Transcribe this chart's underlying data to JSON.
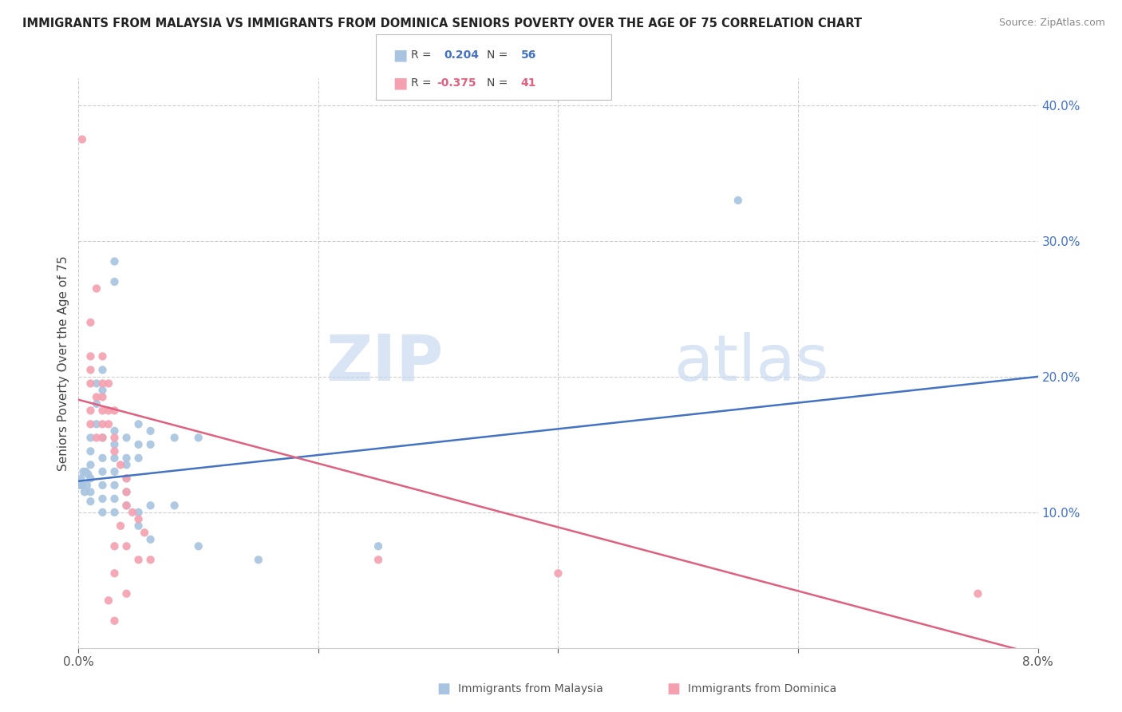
{
  "title": "IMMIGRANTS FROM MALAYSIA VS IMMIGRANTS FROM DOMINICA SENIORS POVERTY OVER THE AGE OF 75 CORRELATION CHART",
  "source": "Source: ZipAtlas.com",
  "ylabel": "Seniors Poverty Over the Age of 75",
  "x_min": 0.0,
  "x_max": 0.08,
  "y_min": 0.0,
  "y_max": 0.42,
  "y_ticks": [
    0.1,
    0.2,
    0.3,
    0.4
  ],
  "y_tick_labels": [
    "10.0%",
    "20.0%",
    "30.0%",
    "40.0%"
  ],
  "x_ticks": [
    0.0,
    0.02,
    0.04,
    0.06,
    0.08
  ],
  "x_tick_labels": [
    "0.0%",
    "",
    "",
    "",
    "8.0%"
  ],
  "malaysia_R": 0.204,
  "malaysia_N": 56,
  "dominica_R": -0.375,
  "dominica_N": 41,
  "malaysia_color": "#a8c4e0",
  "dominica_color": "#f4a0b0",
  "malaysia_line_color": "#4472c4",
  "dominica_line_color": "#e06080",
  "watermark_zip": "ZIP",
  "watermark_atlas": "atlas",
  "malaysia_scatter": [
    [
      0.0002,
      0.125
    ],
    [
      0.0003,
      0.12
    ],
    [
      0.0004,
      0.13
    ],
    [
      0.0005,
      0.115
    ],
    [
      0.0006,
      0.13
    ],
    [
      0.0007,
      0.12
    ],
    [
      0.0008,
      0.128
    ],
    [
      0.001,
      0.155
    ],
    [
      0.001,
      0.145
    ],
    [
      0.001,
      0.135
    ],
    [
      0.001,
      0.125
    ],
    [
      0.001,
      0.115
    ],
    [
      0.001,
      0.108
    ],
    [
      0.0015,
      0.195
    ],
    [
      0.0015,
      0.18
    ],
    [
      0.0015,
      0.165
    ],
    [
      0.002,
      0.205
    ],
    [
      0.002,
      0.19
    ],
    [
      0.002,
      0.155
    ],
    [
      0.002,
      0.14
    ],
    [
      0.002,
      0.13
    ],
    [
      0.002,
      0.12
    ],
    [
      0.002,
      0.11
    ],
    [
      0.002,
      0.1
    ],
    [
      0.003,
      0.285
    ],
    [
      0.003,
      0.27
    ],
    [
      0.003,
      0.16
    ],
    [
      0.003,
      0.15
    ],
    [
      0.003,
      0.14
    ],
    [
      0.003,
      0.13
    ],
    [
      0.003,
      0.12
    ],
    [
      0.003,
      0.11
    ],
    [
      0.003,
      0.1
    ],
    [
      0.004,
      0.155
    ],
    [
      0.004,
      0.14
    ],
    [
      0.004,
      0.135
    ],
    [
      0.004,
      0.125
    ],
    [
      0.004,
      0.115
    ],
    [
      0.004,
      0.105
    ],
    [
      0.005,
      0.165
    ],
    [
      0.005,
      0.15
    ],
    [
      0.005,
      0.14
    ],
    [
      0.005,
      0.1
    ],
    [
      0.005,
      0.09
    ],
    [
      0.006,
      0.16
    ],
    [
      0.006,
      0.15
    ],
    [
      0.006,
      0.105
    ],
    [
      0.006,
      0.08
    ],
    [
      0.008,
      0.155
    ],
    [
      0.008,
      0.105
    ],
    [
      0.01,
      0.155
    ],
    [
      0.01,
      0.075
    ],
    [
      0.015,
      0.065
    ],
    [
      0.025,
      0.075
    ],
    [
      0.055,
      0.33
    ],
    [
      0.0001,
      0.12
    ]
  ],
  "dominica_scatter": [
    [
      0.0003,
      0.375
    ],
    [
      0.001,
      0.24
    ],
    [
      0.0015,
      0.265
    ],
    [
      0.002,
      0.215
    ],
    [
      0.0025,
      0.195
    ],
    [
      0.001,
      0.215
    ],
    [
      0.001,
      0.205
    ],
    [
      0.001,
      0.195
    ],
    [
      0.0015,
      0.185
    ],
    [
      0.002,
      0.195
    ],
    [
      0.002,
      0.185
    ],
    [
      0.002,
      0.175
    ],
    [
      0.0025,
      0.175
    ],
    [
      0.003,
      0.175
    ],
    [
      0.001,
      0.175
    ],
    [
      0.001,
      0.165
    ],
    [
      0.002,
      0.165
    ],
    [
      0.0025,
      0.165
    ],
    [
      0.003,
      0.155
    ],
    [
      0.0015,
      0.155
    ],
    [
      0.002,
      0.155
    ],
    [
      0.003,
      0.145
    ],
    [
      0.0035,
      0.135
    ],
    [
      0.004,
      0.125
    ],
    [
      0.004,
      0.115
    ],
    [
      0.004,
      0.105
    ],
    [
      0.0045,
      0.1
    ],
    [
      0.005,
      0.095
    ],
    [
      0.0055,
      0.085
    ],
    [
      0.003,
      0.075
    ],
    [
      0.004,
      0.075
    ],
    [
      0.005,
      0.065
    ],
    [
      0.006,
      0.065
    ],
    [
      0.003,
      0.055
    ],
    [
      0.004,
      0.04
    ],
    [
      0.0025,
      0.035
    ],
    [
      0.003,
      0.02
    ],
    [
      0.025,
      0.065
    ],
    [
      0.04,
      0.055
    ],
    [
      0.075,
      0.04
    ],
    [
      0.0035,
      0.09
    ]
  ],
  "malaysia_line_x0": 0.0,
  "malaysia_line_y0": 0.123,
  "malaysia_line_x1": 0.08,
  "malaysia_line_y1": 0.2,
  "dominica_line_x0": 0.0,
  "dominica_line_y0": 0.183,
  "dominica_line_x1": 0.08,
  "dominica_line_y1": -0.005
}
